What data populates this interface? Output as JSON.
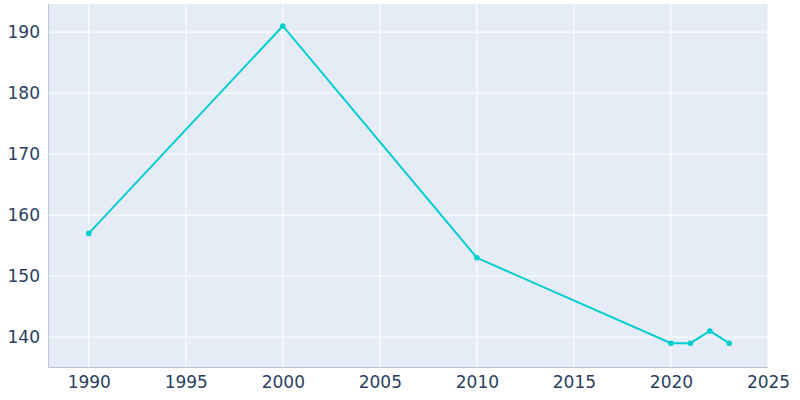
{
  "chart_data": {
    "type": "line",
    "x": [
      1990,
      2000,
      2010,
      2020,
      2021,
      2022,
      2023
    ],
    "values": [
      157,
      191,
      153,
      139,
      139,
      141,
      139
    ],
    "color": "#00cdd0",
    "marker": "circle",
    "xlim": [
      1987.9,
      2025
    ],
    "xticks": [
      1990,
      1995,
      2000,
      2005,
      2010,
      2015,
      2020,
      2025
    ],
    "ylim": [
      135.1,
      194.6
    ],
    "yticks": [
      140,
      150,
      160,
      170,
      180,
      190
    ],
    "grid": true
  }
}
